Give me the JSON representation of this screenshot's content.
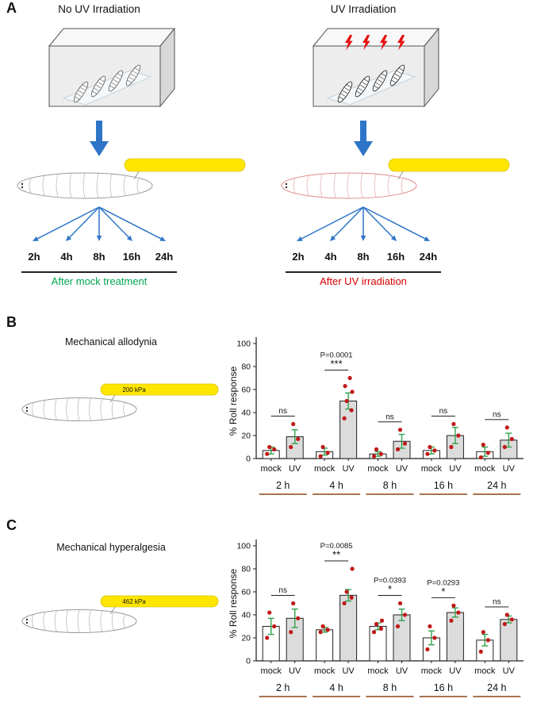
{
  "panelA": {
    "label": "A",
    "mock": {
      "title": "No UV Irradiation",
      "timepoints": [
        "2h",
        "4h",
        "8h",
        "16h",
        "24h"
      ],
      "caption": "After mock treatment",
      "caption_color": "#00a550"
    },
    "uv": {
      "title": "UV Irradiation",
      "timepoints": [
        "2h",
        "4h",
        "8h",
        "16h",
        "24h"
      ],
      "caption": "After UV irradiation",
      "caption_color": "#d40000"
    }
  },
  "panelB": {
    "label": "B",
    "title": "Mechanical allodynia",
    "probe_label": "200 kPa"
  },
  "panelC": {
    "label": "C",
    "title": "Mechanical hyperalgesia",
    "probe_label": "462 kPa"
  },
  "colors": {
    "arrow_blue": "#2e75c8",
    "bolt_red": "#e81010",
    "bar_mock": "#ffffff",
    "bar_uv": "#dcdcdc",
    "error_green": "#31a24c",
    "point_red": "#c01818",
    "group_line": "#8b4513",
    "axis": "#1a1a1a",
    "probe_yellow": "#ffe600"
  },
  "chart_data": [
    {
      "id": "chart-allodynia",
      "type": "bar",
      "title": "Mechanical allodynia",
      "xlabel": "",
      "ylabel": "% Roll response",
      "ylim": [
        0,
        100
      ],
      "yticks": [
        0,
        20,
        40,
        60,
        80,
        100
      ],
      "groups": [
        "2 h",
        "4 h",
        "8 h",
        "16 h",
        "24 h"
      ],
      "conditions": [
        "mock",
        "UV"
      ],
      "series": [
        {
          "name": "mock",
          "values": [
            7,
            6,
            4,
            7,
            6
          ],
          "errors": [
            3,
            3,
            2,
            3,
            4
          ],
          "points": [
            [
              4,
              8,
              10
            ],
            [
              2,
              5,
              10
            ],
            [
              2,
              4,
              8
            ],
            [
              4,
              7,
              10
            ],
            [
              1,
              5,
              12
            ]
          ]
        },
        {
          "name": "UV",
          "values": [
            19,
            50,
            15,
            20,
            16
          ],
          "errors": [
            6,
            7,
            6,
            7,
            6
          ],
          "points": [
            [
              10,
              17,
              30
            ],
            [
              35,
              42,
              50,
              58,
              63,
              70
            ],
            [
              8,
              13,
              25
            ],
            [
              10,
              20,
              30
            ],
            [
              10,
              17,
              27
            ]
          ]
        }
      ],
      "annotations": [
        {
          "text": "ns"
        },
        {
          "text": "***",
          "pvalue": "P=0.0001"
        },
        {
          "text": "ns"
        },
        {
          "text": "ns"
        },
        {
          "text": "ns"
        }
      ]
    },
    {
      "id": "chart-hyperalgesia",
      "type": "bar",
      "title": "Mechanical hyperalgesia",
      "xlabel": "",
      "ylabel": "% Roll response",
      "ylim": [
        0,
        100
      ],
      "yticks": [
        0,
        20,
        40,
        60,
        80,
        100
      ],
      "groups": [
        "2 h",
        "4 h",
        "8 h",
        "16 h",
        "24 h"
      ],
      "conditions": [
        "mock",
        "UV"
      ],
      "series": [
        {
          "name": "mock",
          "values": [
            30,
            27,
            30,
            20,
            18
          ],
          "errors": [
            7,
            2,
            3,
            6,
            5
          ],
          "points": [
            [
              20,
              30,
              42
            ],
            [
              25,
              27,
              30
            ],
            [
              25,
              28,
              32,
              35
            ],
            [
              10,
              20,
              30
            ],
            [
              8,
              18,
              25
            ]
          ]
        },
        {
          "name": "UV",
          "values": [
            37,
            57,
            40,
            42,
            36
          ],
          "errors": [
            8,
            5,
            5,
            4,
            3
          ],
          "points": [
            [
              25,
              37,
              50
            ],
            [
              50,
              55,
              60,
              80
            ],
            [
              30,
              40,
              50
            ],
            [
              35,
              42,
              48
            ],
            [
              32,
              36,
              40
            ]
          ]
        }
      ],
      "annotations": [
        {
          "text": "ns"
        },
        {
          "text": "**",
          "pvalue": "P=0.0085"
        },
        {
          "text": "*",
          "pvalue": "P=0.0393"
        },
        {
          "text": "*",
          "pvalue": "P=0.0293"
        },
        {
          "text": "ns"
        }
      ]
    }
  ]
}
